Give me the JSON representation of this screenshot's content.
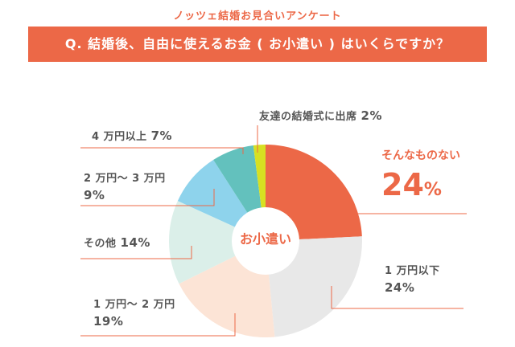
{
  "header": {
    "survey_title": "ノッツェ結婚お見合いアンケート",
    "question": "Q. 結婚後、自由に使えるお金 ( お小遣い ) はいくらですか？"
  },
  "colors": {
    "accent": "#ec6847",
    "line": "#ec6847"
  },
  "chart_data": {
    "type": "pie",
    "style": "donut",
    "center_label": "お小遣い",
    "unit": "%",
    "slices": [
      {
        "label": "そんなものない",
        "value": 24,
        "value_text": "24",
        "color": "#ec6847"
      },
      {
        "label": "1 万円以下",
        "value": 24,
        "value_text": "24%",
        "color": "#e8e8e8"
      },
      {
        "label": "1 万円〜 2 万円",
        "value": 19,
        "value_text": "19%",
        "color": "#fce4d6"
      },
      {
        "label": "その他",
        "value": 14,
        "value_text": "14%",
        "color": "#dbefe9"
      },
      {
        "label": "2 万円〜 3 万円",
        "value": 9,
        "value_text": "9%",
        "color": "#8ed3ec"
      },
      {
        "label": "4 万円以上",
        "value": 7,
        "value_text": "7%",
        "color": "#63c1bd"
      },
      {
        "label": "友達の結婚式に出席",
        "value": 2,
        "value_text": "2%",
        "color": "#d7e022"
      }
    ]
  }
}
